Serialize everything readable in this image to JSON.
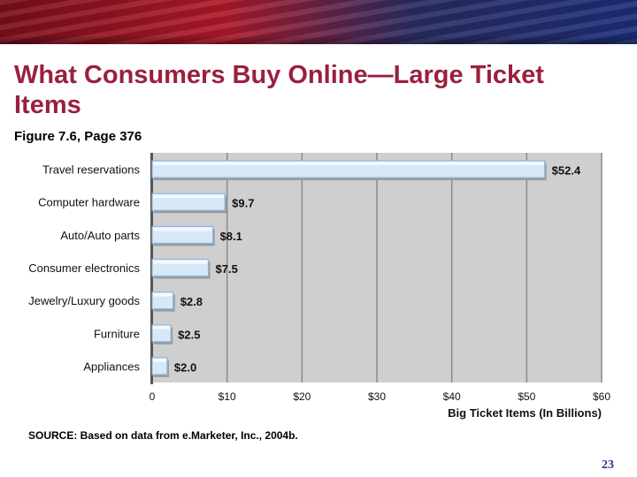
{
  "slide": {
    "title": "What Consumers Buy Online—Large Ticket Items",
    "subtitle": "Figure 7.6, Page 376",
    "source": "SOURCE: Based on data from e.Marketer, Inc., 2004b.",
    "page_number": "23"
  },
  "colors": {
    "bar_fill": "#d7e8f7",
    "bar_edge": "#8fb6dc",
    "plot_bg": "#cfcfcf",
    "grid": "#8a8a8a",
    "title": "#99213d"
  },
  "chart_data": {
    "type": "bar",
    "orientation": "horizontal",
    "categories": [
      "Travel reservations",
      "Computer hardware",
      "Auto/Auto parts",
      "Consumer electronics",
      "Jewelry/Luxury goods",
      "Furniture",
      "Appliances"
    ],
    "values": [
      52.4,
      9.7,
      8.1,
      7.5,
      2.8,
      2.5,
      2.0
    ],
    "value_labels": [
      "$52.4",
      "$9.7",
      "$8.1",
      "$7.5",
      "$2.8",
      "$2.5",
      "$2.0"
    ],
    "xticks": [
      0,
      10,
      20,
      30,
      40,
      50,
      60
    ],
    "xtick_labels": [
      "0",
      "$10",
      "$20",
      "$30",
      "$40",
      "$50",
      "$60"
    ],
    "xlim": [
      0,
      60
    ],
    "xlabel": "Big Ticket Items (In Billions)",
    "ylabel": "",
    "grid": true
  }
}
